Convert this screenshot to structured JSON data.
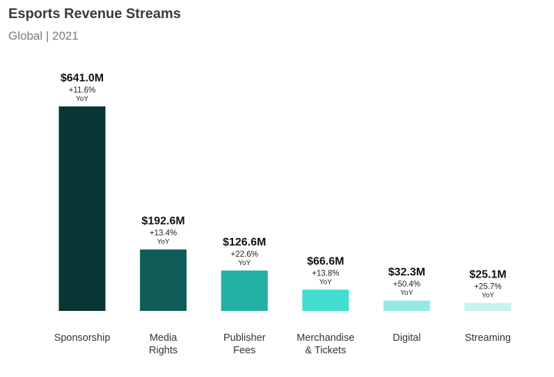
{
  "title": "Esports Revenue Streams",
  "subtitle": "Global | 2021",
  "chart_data": {
    "type": "bar",
    "title": "Esports Revenue Streams",
    "subtitle": "Global | 2021",
    "unit": "$M",
    "categories": [
      [
        "Sponsorship"
      ],
      [
        "Media",
        "Rights"
      ],
      [
        "Publisher",
        "Fees"
      ],
      [
        "Merchandise",
        "& Tickets"
      ],
      [
        "Digital"
      ],
      [
        "Streaming"
      ]
    ],
    "values": [
      641.0,
      192.6,
      126.6,
      66.6,
      32.3,
      25.1
    ],
    "value_labels": [
      "$641.0M",
      "$192.6M",
      "$126.6M",
      "$66.6M",
      "$32.3M",
      "$25.1M"
    ],
    "yoy_change": [
      "+11.6%",
      "+13.4%",
      "+22.6%",
      "+13.8%",
      "+50.4%",
      "+25.7%"
    ],
    "yoy_suffix": "YoY",
    "colors": [
      "#0a3535",
      "#0f5c58",
      "#22b1a4",
      "#43ded2",
      "#94ebe3",
      "#c6f3ef"
    ],
    "ylim": [
      0,
      641.0
    ],
    "grid": false,
    "legend": "none"
  }
}
